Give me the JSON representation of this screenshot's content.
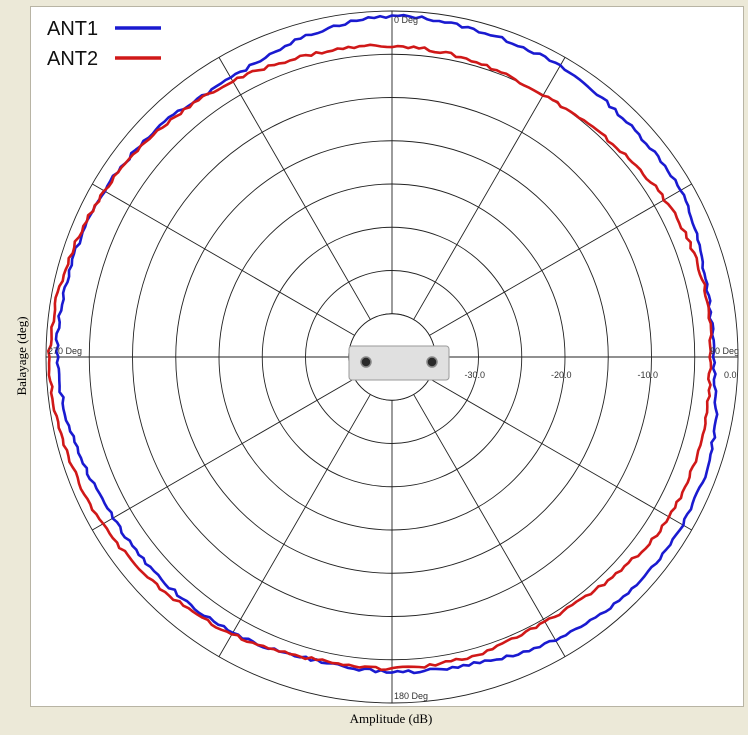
{
  "chart_data": {
    "type": "polar-line",
    "xlabel": "Amplitude (dB)",
    "ylabel": "Balayage (deg)",
    "radial_range": [
      -40,
      0
    ],
    "radial_ticks": [
      {
        "value": -30,
        "label": "-30.0"
      },
      {
        "value": -20,
        "label": "-20.0"
      },
      {
        "value": -10,
        "label": "-10.0"
      },
      {
        "value": 0,
        "label": "0.0"
      }
    ],
    "angle_labels": [
      {
        "angle": 0,
        "label": "0 Deg"
      },
      {
        "angle": 90,
        "label": "90 Deg"
      },
      {
        "angle": 180,
        "label": "180 Deg"
      },
      {
        "angle": 270,
        "label": "270 Deg"
      }
    ],
    "series": [
      {
        "name": "ANT1",
        "color": "#1a1ad0",
        "points": [
          [
            0,
            -0.6
          ],
          [
            15,
            -1.0
          ],
          [
            30,
            -1.2
          ],
          [
            45,
            -1.6
          ],
          [
            60,
            -1.5
          ],
          [
            75,
            -2.6
          ],
          [
            90,
            -2.8
          ],
          [
            105,
            -1.6
          ],
          [
            120,
            -1.2
          ],
          [
            135,
            -1.4
          ],
          [
            150,
            -2.2
          ],
          [
            165,
            -3.3
          ],
          [
            180,
            -3.6
          ],
          [
            195,
            -3.8
          ],
          [
            210,
            -3.2
          ],
          [
            225,
            -3.0
          ],
          [
            240,
            -2.8
          ],
          [
            255,
            -2.0
          ],
          [
            270,
            -1.3
          ],
          [
            285,
            -1.4
          ],
          [
            300,
            -1.6
          ],
          [
            315,
            -2.2
          ],
          [
            330,
            -2.8
          ],
          [
            345,
            -1.6
          ]
        ]
      },
      {
        "name": "ANT2",
        "color": "#d01818",
        "points": [
          [
            0,
            -4.0
          ],
          [
            15,
            -4.5
          ],
          [
            30,
            -5.0
          ],
          [
            45,
            -4.6
          ],
          [
            60,
            -3.6
          ],
          [
            75,
            -3.0
          ],
          [
            90,
            -3.2
          ],
          [
            105,
            -3.0
          ],
          [
            120,
            -3.0
          ],
          [
            135,
            -4.0
          ],
          [
            150,
            -4.6
          ],
          [
            165,
            -4.2
          ],
          [
            180,
            -4.0
          ],
          [
            195,
            -3.9
          ],
          [
            210,
            -3.0
          ],
          [
            225,
            -2.2
          ],
          [
            240,
            -1.4
          ],
          [
            255,
            -0.8
          ],
          [
            270,
            -0.4
          ],
          [
            285,
            -0.9
          ],
          [
            300,
            -1.6
          ],
          [
            315,
            -2.4
          ],
          [
            330,
            -3.2
          ],
          [
            345,
            -3.8
          ]
        ]
      }
    ],
    "legend_position": "top-left",
    "grid": true,
    "angular_grid_step_deg": 30,
    "radial_rings_db": [
      -35,
      -30,
      -25,
      -20,
      -15,
      -10,
      -5,
      0
    ]
  },
  "device_icon": "antenna-device-icon"
}
